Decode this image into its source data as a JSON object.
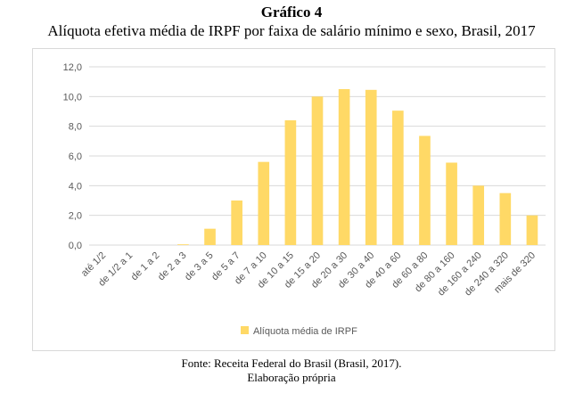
{
  "figure": {
    "label": "Gráfico 4",
    "source": "Fonte: Receita Federal do Brasil (Brasil, 2017).",
    "credit": "Elaboração própria"
  },
  "chart_data": {
    "type": "bar",
    "title": "Alíquota efetiva média de IRPF por faixa de salário mínimo e sexo, Brasil, 2017",
    "categories": [
      "até 1/2",
      "de 1/2 a 1",
      "de 1 a 2",
      "de 2 a 3",
      "de 3 a 5",
      "de 5 a 7",
      "de 7 a 10",
      "de 10 a 15",
      "de 15 a 20",
      "de 20 a 30",
      "de 30 a 40",
      "de 40 a 60",
      "de 60 a 80",
      "de 80 a 160",
      "de 160 a 240",
      "de 240 a 320",
      "mais de 320"
    ],
    "series": [
      {
        "name": "Alíquota média de IRPF",
        "values": [
          0.0,
          0.0,
          0.0,
          0.05,
          1.1,
          3.0,
          5.6,
          8.4,
          10.0,
          10.5,
          10.45,
          9.05,
          7.35,
          5.55,
          4.0,
          3.5,
          2.0
        ]
      }
    ],
    "ylim": [
      0,
      12
    ],
    "yticks": [
      "0,0",
      "2,0",
      "4,0",
      "6,0",
      "8,0",
      "10,0",
      "12,0"
    ],
    "grid": true,
    "legend_position": "bottom",
    "colors": {
      "bar": "#FFD966",
      "grid": "#d9d9d9",
      "axis_text": "#595959"
    }
  }
}
